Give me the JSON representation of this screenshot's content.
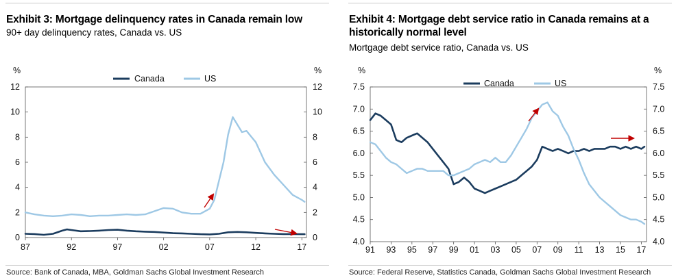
{
  "chart_data": [
    {
      "type": "line",
      "title": "Exhibit 3: Mortgage delinquency rates in Canada remain low",
      "subtitle": "90+ day delinquency rates, Canada vs. US",
      "source": "Source: Bank of Canada, MBA, Goldman Sachs Global Investment Research",
      "ylabel_left": "%",
      "ylabel_right": "%",
      "xlim": [
        1987,
        2017.5
      ],
      "ylim": [
        0,
        12
      ],
      "yticks": [
        0,
        2,
        4,
        6,
        8,
        10,
        12
      ],
      "ytick_labels": [
        "0",
        "2",
        "4",
        "6",
        "8",
        "10",
        "12"
      ],
      "xticks": [
        1987,
        1992,
        1997,
        2002,
        2007,
        2012,
        2017
      ],
      "xtick_labels": [
        "87",
        "92",
        "97",
        "02",
        "07",
        "12",
        "17"
      ],
      "legend": "top-center",
      "series": [
        {
          "name": "Canada",
          "color": "#1b3c5e",
          "x": [
            1987,
            1988,
            1989,
            1990,
            1991,
            1991.5,
            1992,
            1993,
            1994,
            1995,
            1996,
            1997,
            1998,
            1999,
            2000,
            2001,
            2002,
            2003,
            2004,
            2005,
            2006,
            2007,
            2008,
            2009,
            2010,
            2011,
            2012,
            2013,
            2014,
            2015,
            2016,
            2017,
            2017.3
          ],
          "values": [
            0.3,
            0.28,
            0.22,
            0.3,
            0.55,
            0.65,
            0.6,
            0.5,
            0.52,
            0.55,
            0.6,
            0.62,
            0.55,
            0.5,
            0.47,
            0.45,
            0.4,
            0.35,
            0.33,
            0.3,
            0.27,
            0.25,
            0.3,
            0.42,
            0.45,
            0.42,
            0.37,
            0.33,
            0.3,
            0.28,
            0.28,
            0.27,
            0.27
          ]
        },
        {
          "name": "US",
          "color": "#9ec8e5",
          "x": [
            1987,
            1988,
            1989,
            1990,
            1991,
            1992,
            1993,
            1994,
            1995,
            1996,
            1997,
            1998,
            1999,
            2000,
            2001,
            2002,
            2003,
            2004,
            2005,
            2006,
            2007,
            2007.5,
            2008,
            2008.5,
            2009,
            2009.5,
            2010,
            2010.5,
            2011,
            2012,
            2013,
            2014,
            2015,
            2016,
            2017,
            2017.3
          ],
          "values": [
            2.0,
            1.85,
            1.75,
            1.7,
            1.75,
            1.85,
            1.8,
            1.7,
            1.75,
            1.75,
            1.8,
            1.85,
            1.8,
            1.85,
            2.1,
            2.35,
            2.3,
            2.0,
            1.9,
            1.9,
            2.3,
            3.0,
            4.5,
            6.0,
            8.2,
            9.6,
            9.0,
            8.4,
            8.5,
            7.6,
            6.0,
            5.0,
            4.2,
            3.4,
            3.0,
            2.85
          ]
        }
      ]
    },
    {
      "type": "line",
      "title": "Exhibit 4: Mortgage debt service ratio in Canada remains at a historically normal level",
      "subtitle": "Mortgage debt service ratio, Canada vs. US",
      "source": "Source: Federal Reserve, Statistics Canada, Goldman Sachs Global Investment Research",
      "ylabel_left": "%",
      "ylabel_right": "%",
      "xlim": [
        1991,
        2017.5
      ],
      "ylim": [
        4.0,
        7.5
      ],
      "yticks": [
        4.0,
        4.5,
        5.0,
        5.5,
        6.0,
        6.5,
        7.0,
        7.5
      ],
      "ytick_labels": [
        "4.0",
        "4.5",
        "5.0",
        "5.5",
        "6.0",
        "6.5",
        "7.0",
        "7.5"
      ],
      "xticks": [
        1991,
        1993,
        1995,
        1997,
        1999,
        2001,
        2003,
        2005,
        2007,
        2009,
        2011,
        2013,
        2015,
        2017
      ],
      "xtick_labels": [
        "91",
        "93",
        "95",
        "97",
        "99",
        "01",
        "03",
        "05",
        "07",
        "09",
        "11",
        "13",
        "15",
        "17"
      ],
      "legend": "top-center",
      "series": [
        {
          "name": "Canada",
          "color": "#1b3c5e",
          "x": [
            1991,
            1991.5,
            1992,
            1992.5,
            1993,
            1993.5,
            1994,
            1994.5,
            1995,
            1995.5,
            1996,
            1996.5,
            1997,
            1997.5,
            1998,
            1998.5,
            1999,
            1999.5,
            2000,
            2000.5,
            2001,
            2001.5,
            2002,
            2002.5,
            2003,
            2003.5,
            2004,
            2004.5,
            2005,
            2005.5,
            2006,
            2006.5,
            2007,
            2007.5,
            2008,
            2008.5,
            2009,
            2009.5,
            2010,
            2010.5,
            2011,
            2011.5,
            2012,
            2012.5,
            2013,
            2013.5,
            2014,
            2014.5,
            2015,
            2015.5,
            2016,
            2016.5,
            2017,
            2017.3
          ],
          "values": [
            6.75,
            6.9,
            6.85,
            6.75,
            6.65,
            6.3,
            6.25,
            6.35,
            6.4,
            6.45,
            6.35,
            6.25,
            6.1,
            5.95,
            5.8,
            5.65,
            5.3,
            5.35,
            5.45,
            5.35,
            5.2,
            5.15,
            5.1,
            5.15,
            5.2,
            5.25,
            5.3,
            5.35,
            5.4,
            5.5,
            5.6,
            5.7,
            5.85,
            6.15,
            6.1,
            6.05,
            6.1,
            6.05,
            6.0,
            6.05,
            6.05,
            6.1,
            6.05,
            6.1,
            6.1,
            6.1,
            6.15,
            6.15,
            6.1,
            6.15,
            6.1,
            6.15,
            6.1,
            6.15
          ]
        },
        {
          "name": "US",
          "color": "#9ec8e5",
          "x": [
            1991,
            1991.5,
            1992,
            1992.5,
            1993,
            1993.5,
            1994,
            1994.5,
            1995,
            1995.5,
            1996,
            1996.5,
            1997,
            1997.5,
            1998,
            1998.5,
            1999,
            1999.5,
            2000,
            2000.5,
            2001,
            2001.5,
            2002,
            2002.5,
            2003,
            2003.5,
            2004,
            2004.5,
            2005,
            2005.5,
            2006,
            2006.5,
            2007,
            2007.5,
            2008,
            2008.5,
            2009,
            2009.5,
            2010,
            2010.5,
            2011,
            2011.5,
            2012,
            2012.5,
            2013,
            2013.5,
            2014,
            2014.5,
            2015,
            2015.5,
            2016,
            2016.5,
            2017,
            2017.3
          ],
          "values": [
            6.25,
            6.2,
            6.05,
            5.9,
            5.8,
            5.75,
            5.65,
            5.55,
            5.6,
            5.65,
            5.65,
            5.6,
            5.6,
            5.6,
            5.6,
            5.5,
            5.5,
            5.55,
            5.6,
            5.65,
            5.75,
            5.8,
            5.85,
            5.8,
            5.9,
            5.8,
            5.8,
            5.95,
            6.15,
            6.35,
            6.55,
            6.8,
            6.95,
            7.1,
            7.15,
            6.95,
            6.85,
            6.6,
            6.4,
            6.1,
            5.85,
            5.55,
            5.3,
            5.15,
            5.0,
            4.9,
            4.8,
            4.7,
            4.6,
            4.55,
            4.5,
            4.5,
            4.45,
            4.4
          ]
        }
      ],
      "arrows": []
    }
  ]
}
